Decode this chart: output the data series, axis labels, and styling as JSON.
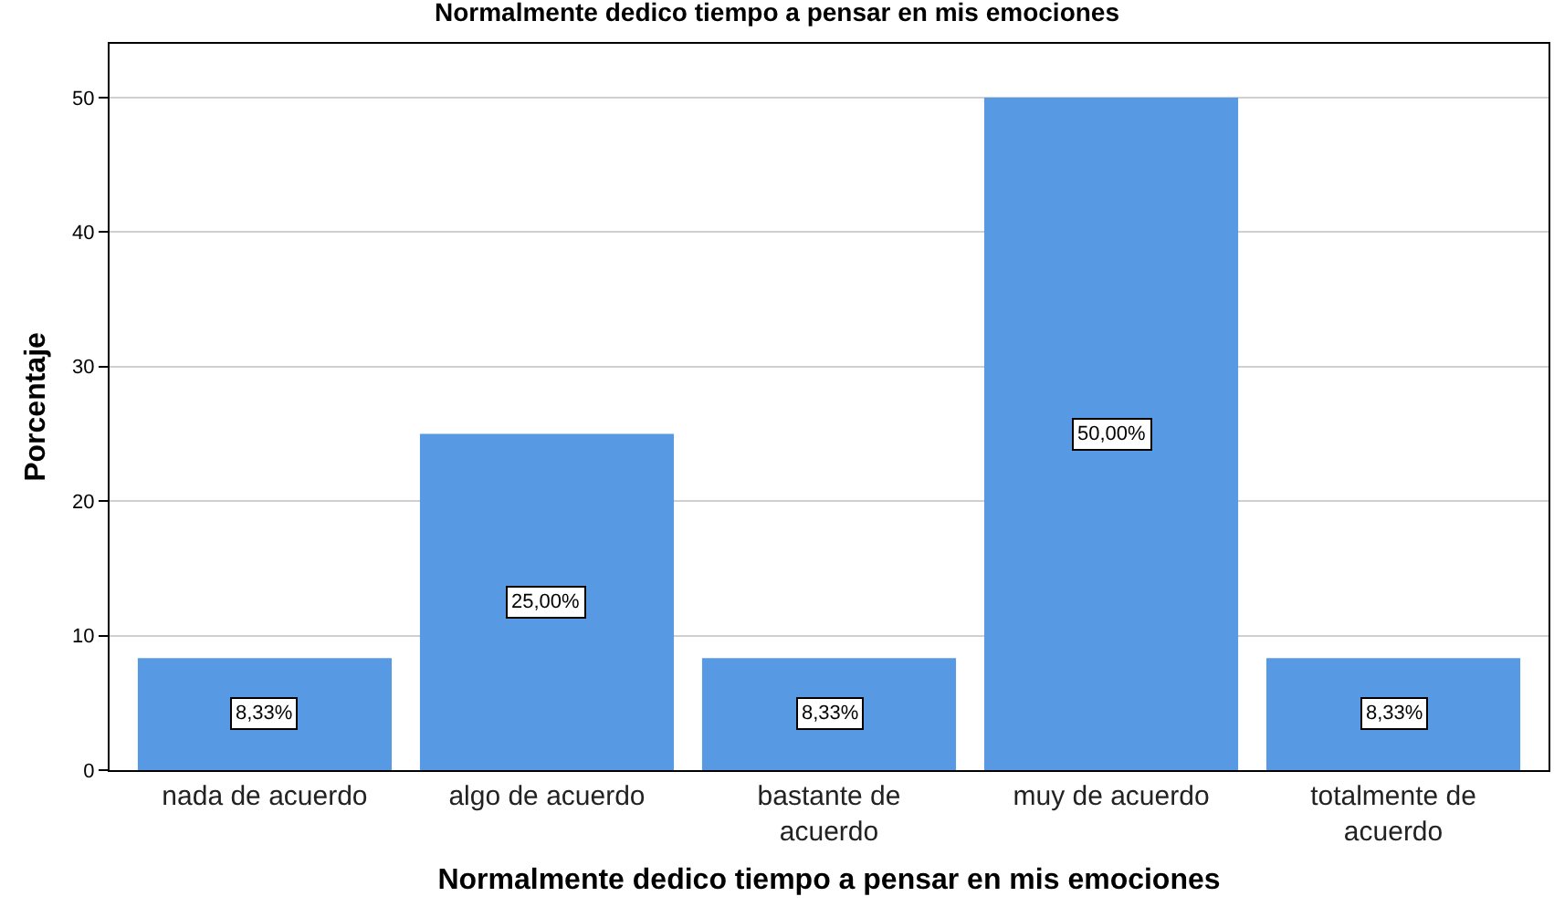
{
  "chart_data": {
    "type": "bar",
    "title": "Normalmente dedico tiempo a pensar en mis emociones",
    "xlabel": "Normalmente dedico tiempo a pensar en mis emociones",
    "ylabel": "Porcentaje",
    "categories": [
      "nada de acuerdo",
      "algo de acuerdo",
      "bastante de acuerdo",
      "muy de acuerdo",
      "totalmente de acuerdo"
    ],
    "values": [
      8.33,
      25,
      8.33,
      50,
      8.33
    ],
    "value_labels": [
      "8,33%",
      "25,00%",
      "8,33%",
      "50,00%",
      "8,33%"
    ],
    "color": "#5899e4",
    "ylim": [
      0,
      54
    ],
    "yticks": [
      0,
      10,
      20,
      30,
      40,
      50
    ],
    "grid": "y"
  }
}
